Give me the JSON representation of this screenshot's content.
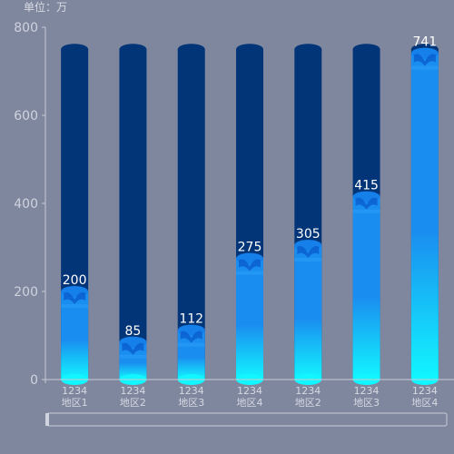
{
  "chart_data": {
    "type": "bar",
    "unit_label": "单位：万",
    "categories": [
      [
        "1234",
        "地区1"
      ],
      [
        "1234",
        "地区2"
      ],
      [
        "1234",
        "地区3"
      ],
      [
        "1234",
        "地区4"
      ],
      [
        "1234",
        "地区2"
      ],
      [
        "1234",
        "地区3"
      ],
      [
        "1234",
        "地区4"
      ]
    ],
    "values": [
      200,
      85,
      112,
      275,
      305,
      415,
      741
    ],
    "background_value": 750,
    "ylim": [
      0,
      800
    ],
    "yticks": [
      0,
      200,
      400,
      600,
      800
    ],
    "grid": false,
    "colors": {
      "background_bar": "#023578",
      "background_cap": "#012a63",
      "bar_top": "#1a8ef0",
      "bar_bottom": "#12f6ff",
      "cap": "#1580ea",
      "wave": "#0b5fcf"
    }
  }
}
